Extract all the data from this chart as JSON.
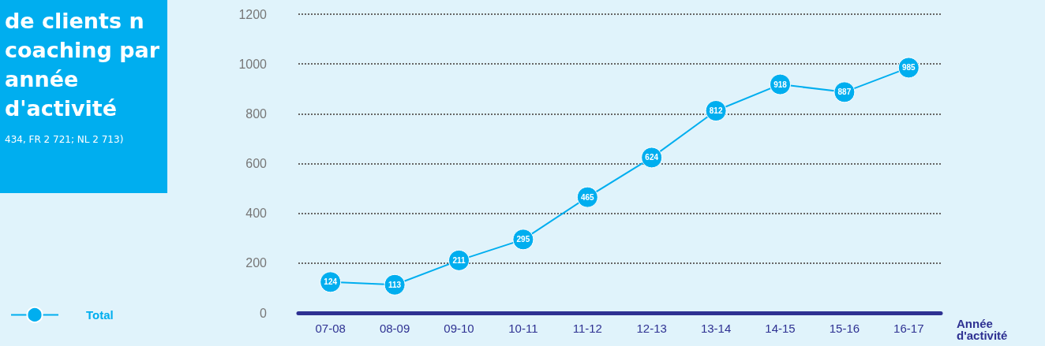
{
  "chart_data": {
    "type": "line",
    "title": "de clients n coaching par année d'activité",
    "subtitle": "434, FR 2 721; NL 2 713)",
    "xlabel": "Année d'activité",
    "categories": [
      "07-08",
      "08-09",
      "09-10",
      "10-11",
      "11-12",
      "12-13",
      "13-14",
      "14-15",
      "15-16",
      "16-17"
    ],
    "series": [
      {
        "name": "Total",
        "color": "#00aeef",
        "values": [
          124,
          113,
          211,
          295,
          465,
          624,
          812,
          918,
          887,
          985
        ]
      }
    ],
    "ylim": [
      0,
      1200
    ],
    "yticks": [
      0,
      200,
      400,
      600,
      800,
      1000,
      1200
    ],
    "grid": "y",
    "legend": "bottom left",
    "marker": "circle",
    "line_style": "solid",
    "data_labels": true
  }
}
